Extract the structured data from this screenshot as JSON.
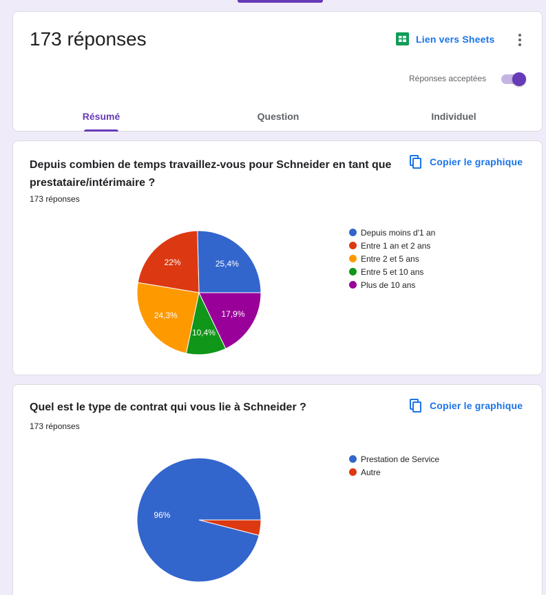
{
  "header": {
    "title": "173 réponses",
    "sheets_label": "Lien vers Sheets",
    "accept_label": "Réponses acceptées",
    "tabs": [
      {
        "label": "Résumé",
        "active": true
      },
      {
        "label": "Question",
        "active": false
      },
      {
        "label": "Individuel",
        "active": false
      }
    ]
  },
  "questions": [
    {
      "title": "Depuis combien de temps travaillez-vous pour Schneider en tant que prestataire/intérimaire ?",
      "count": "173 réponses",
      "copy_label": "Copier le graphique"
    },
    {
      "title": "Quel est le type de contrat qui vous lie à Schneider ?",
      "count": "173 réponses",
      "copy_label": "Copier le graphique"
    }
  ],
  "chart_data": [
    {
      "type": "pie",
      "categories": [
        "Depuis moins d'1 an",
        "Entre 1 an et 2 ans",
        "Entre 2 et 5 ans",
        "Entre 5 et 10 ans",
        "Plus de 10 ans"
      ],
      "values": [
        25.4,
        22,
        24.3,
        10.4,
        17.9
      ],
      "labels": [
        "25,4%",
        "22%",
        "24,3%",
        "10,4%",
        "17,9%"
      ],
      "colors": [
        "#3366cc",
        "#dc3912",
        "#ff9900",
        "#109618",
        "#990099"
      ],
      "legend": "right"
    },
    {
      "type": "pie",
      "categories": [
        "Prestation de Service",
        "Autre"
      ],
      "values": [
        96,
        4
      ],
      "labels": [
        "96%",
        ""
      ],
      "colors": [
        "#3366cc",
        "#dc3912"
      ],
      "legend": "right"
    }
  ]
}
